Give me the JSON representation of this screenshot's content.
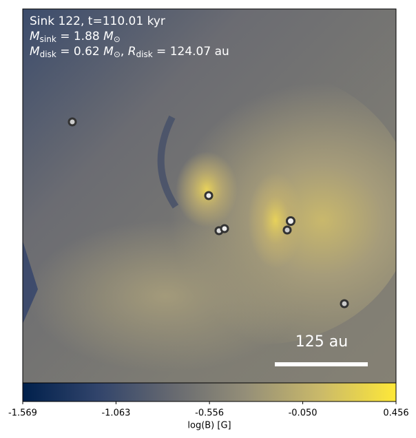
{
  "chart_data": {
    "type": "heatmap",
    "title_lines": {
      "line1": "Sink 122, t=110.01 kyr",
      "line2": {
        "symbol": "M",
        "subscript": "sink",
        "text": " = 1.88 ",
        "unit": "M",
        "unit_subscript": "⊙"
      },
      "line3": {
        "symbol": "M",
        "subscript": "disk",
        "text": " = 0.62 ",
        "unit": "M",
        "unit_subscript": "⊙",
        "text2": ", ",
        "symbol2": "R",
        "subscript2": "disk",
        "text3": " = 124.07 au"
      }
    },
    "scale_bar_label": "125 au",
    "colorbar": {
      "label": "log(B) [G]",
      "lim": [
        -1.569,
        0.456
      ],
      "ticks": [
        -1.569,
        -1.063,
        -0.556,
        {
          "value": -0.05,
          "label": "-0.050"
        },
        0.456
      ],
      "colors": [
        "#00204c",
        "#31446b",
        "#666970",
        "#958f78",
        "#cbba69",
        "#fee838"
      ]
    }
  }
}
